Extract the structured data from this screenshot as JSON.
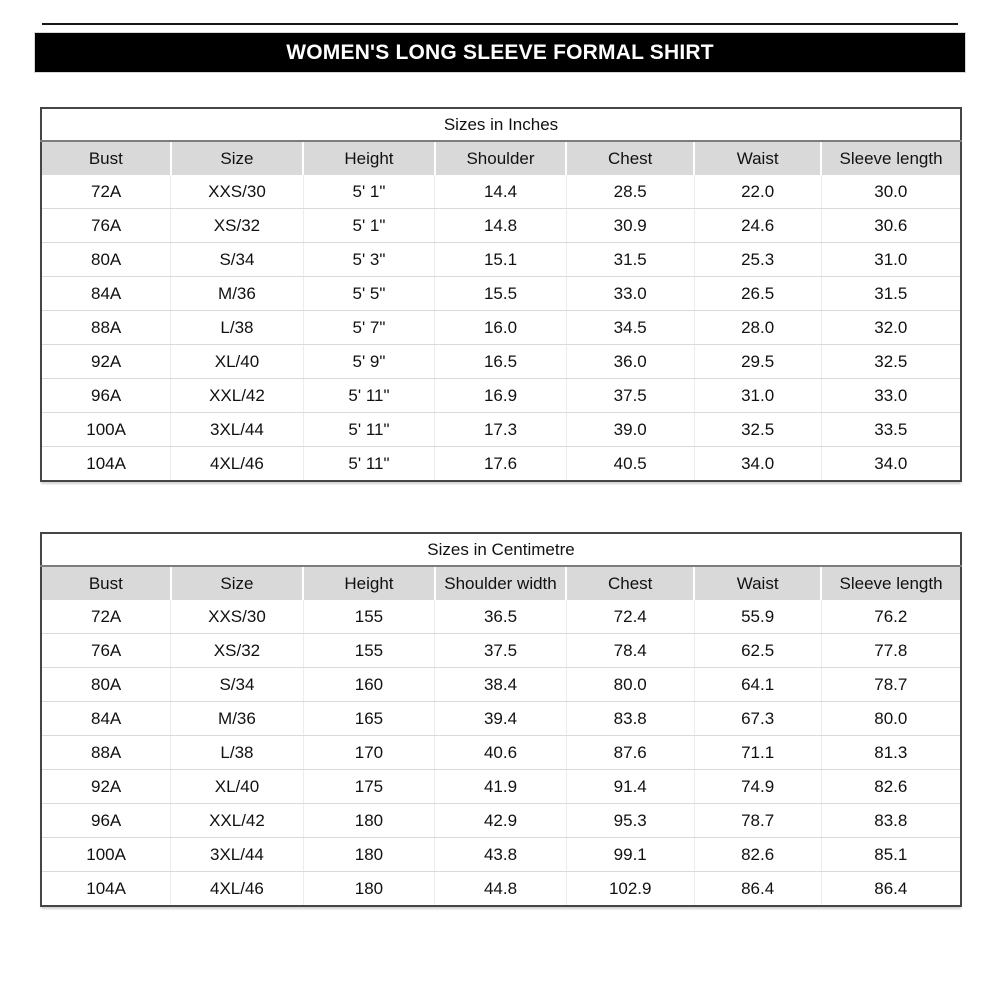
{
  "banner": {
    "title": "WOMEN'S LONG SLEEVE FORMAL SHIRT"
  },
  "tables": [
    {
      "title": "Sizes in Inches",
      "columns": [
        "Bust",
        "Size",
        "Height",
        "Shoulder",
        "Chest",
        "Waist",
        "Sleeve length"
      ],
      "rows": [
        [
          "72A",
          "XXS/30",
          "5' 1\"",
          "14.4",
          "28.5",
          "22.0",
          "30.0"
        ],
        [
          "76A",
          "XS/32",
          "5' 1\"",
          "14.8",
          "30.9",
          "24.6",
          "30.6"
        ],
        [
          "80A",
          "S/34",
          "5' 3\"",
          "15.1",
          "31.5",
          "25.3",
          "31.0"
        ],
        [
          "84A",
          "M/36",
          "5' 5\"",
          "15.5",
          "33.0",
          "26.5",
          "31.5"
        ],
        [
          "88A",
          "L/38",
          "5' 7\"",
          "16.0",
          "34.5",
          "28.0",
          "32.0"
        ],
        [
          "92A",
          "XL/40",
          "5' 9\"",
          "16.5",
          "36.0",
          "29.5",
          "32.5"
        ],
        [
          "96A",
          "XXL/42",
          "5' 11\"",
          "16.9",
          "37.5",
          "31.0",
          "33.0"
        ],
        [
          "100A",
          "3XL/44",
          "5' 11\"",
          "17.3",
          "39.0",
          "32.5",
          "33.5"
        ],
        [
          "104A",
          "4XL/46",
          "5' 11\"",
          "17.6",
          "40.5",
          "34.0",
          "34.0"
        ]
      ]
    },
    {
      "title": "Sizes in Centimetre",
      "columns": [
        "Bust",
        "Size",
        "Height",
        "Shoulder width",
        "Chest",
        "Waist",
        "Sleeve length"
      ],
      "rows": [
        [
          "72A",
          "XXS/30",
          "155",
          "36.5",
          "72.4",
          "55.9",
          "76.2"
        ],
        [
          "76A",
          "XS/32",
          "155",
          "37.5",
          "78.4",
          "62.5",
          "77.8"
        ],
        [
          "80A",
          "S/34",
          "160",
          "38.4",
          "80.0",
          "64.1",
          "78.7"
        ],
        [
          "84A",
          "M/36",
          "165",
          "39.4",
          "83.8",
          "67.3",
          "80.0"
        ],
        [
          "88A",
          "L/38",
          "170",
          "40.6",
          "87.6",
          "71.1",
          "81.3"
        ],
        [
          "92A",
          "XL/40",
          "175",
          "41.9",
          "91.4",
          "74.9",
          "82.6"
        ],
        [
          "96A",
          "XXL/42",
          "180",
          "42.9",
          "95.3",
          "78.7",
          "83.8"
        ],
        [
          "100A",
          "3XL/44",
          "180",
          "43.8",
          "99.1",
          "82.6",
          "85.1"
        ],
        [
          "104A",
          "4XL/46",
          "180",
          "44.8",
          "102.9",
          "86.4",
          "86.4"
        ]
      ]
    }
  ],
  "colors": {
    "banner_bg": "#000000",
    "banner_text": "#ffffff",
    "header_row_bg": "#d9d9d9",
    "table_border": "#454545",
    "grid_line": "#dadada",
    "text": "#111111"
  }
}
